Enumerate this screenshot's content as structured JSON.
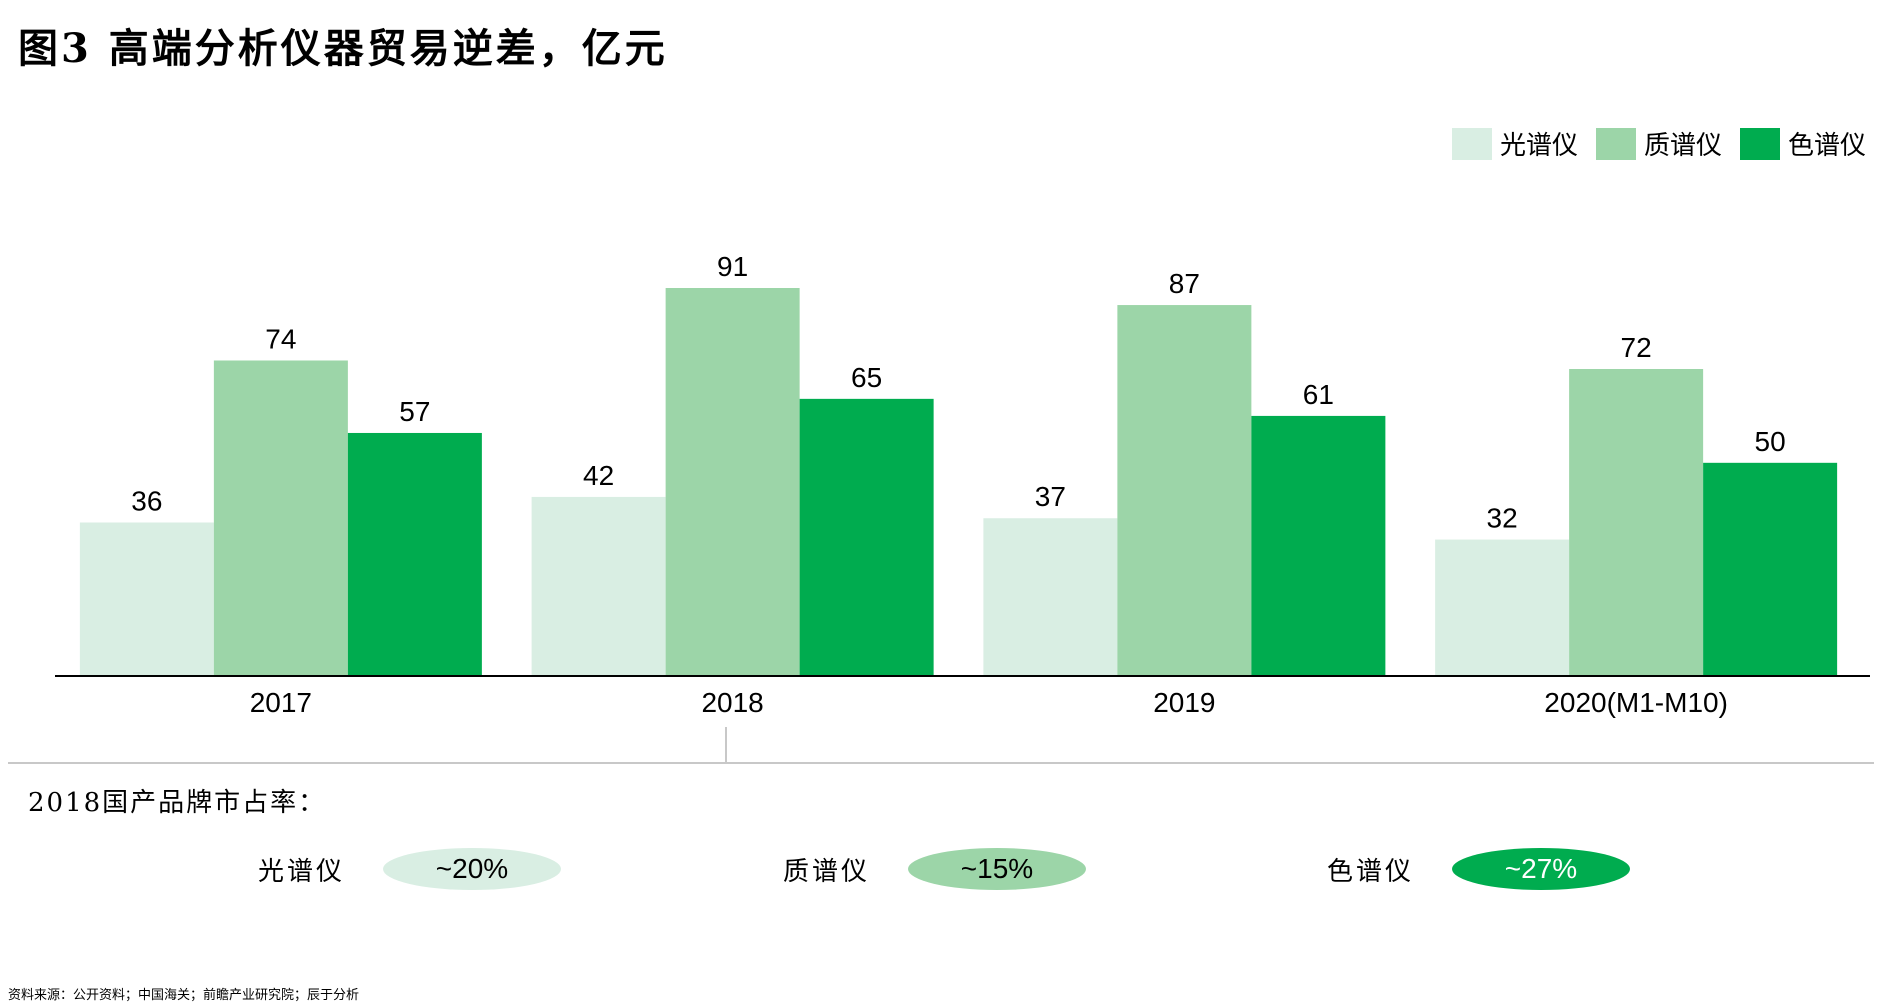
{
  "title": "图3 高端分析仪器贸易逆差，亿元",
  "source": "资料来源：公开资料；中国海关；前瞻产业研究院；辰于分析",
  "legend": [
    {
      "label": "光谱仪",
      "color": "#d9eee3"
    },
    {
      "label": "质谱仪",
      "color": "#9cd5a8"
    },
    {
      "label": "色谱仪",
      "color": "#00ac4f"
    }
  ],
  "chart_data": {
    "type": "bar",
    "categories": [
      "2017",
      "2018",
      "2019",
      "2020(M1-M10)"
    ],
    "series": [
      {
        "name": "光谱仪",
        "values": [
          36,
          42,
          37,
          32
        ],
        "color": "#d9eee3"
      },
      {
        "name": "质谱仪",
        "values": [
          74,
          91,
          87,
          72
        ],
        "color": "#9cd5a8"
      },
      {
        "name": "色谱仪",
        "values": [
          57,
          65,
          61,
          50
        ],
        "color": "#00ac4f"
      }
    ],
    "title": "图3 高端分析仪器贸易逆差，亿元",
    "xlabel": "",
    "ylabel": "",
    "ylim": [
      0,
      91
    ],
    "legend_position": "top-right",
    "grid": false
  },
  "share": {
    "title": "2018国产品牌市占率：",
    "items": [
      {
        "label": "光谱仪",
        "value": "~20%",
        "color": "#d9eee3",
        "text_color": "#000000"
      },
      {
        "label": "质谱仪",
        "value": "~15%",
        "color": "#9cd5a8",
        "text_color": "#000000"
      },
      {
        "label": "色谱仪",
        "value": "~27%",
        "color": "#00ac4f",
        "text_color": "#ffffff"
      }
    ]
  }
}
